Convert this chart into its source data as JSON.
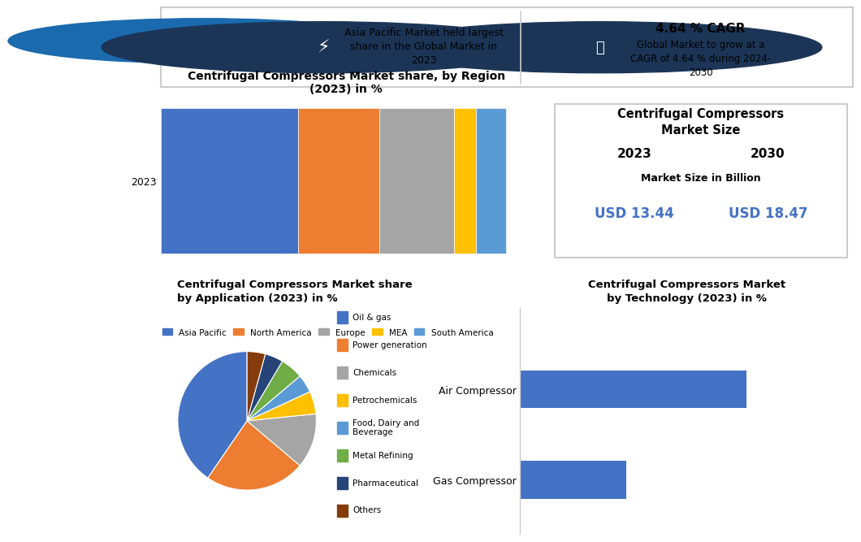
{
  "header_left_text": "Asia Pacific Market held largest\nshare in the Global Market in\n2023",
  "header_right_bold": "4.64 % CAGR",
  "header_right_text": "Global Market to grow at a\nCAGR of 4.64 % during 2024-\n2030",
  "bar_title": "Centrifugal Compressors Market share, by Region\n(2023) in %",
  "bar_label": "2023",
  "bar_regions": [
    "Asia Pacific",
    "North America",
    "Europe",
    "MEA",
    "South America"
  ],
  "bar_values": [
    37,
    22,
    20,
    6,
    8
  ],
  "bar_colors": [
    "#4472C4",
    "#ED7D31",
    "#A5A5A5",
    "#FFC000",
    "#5B9BD5"
  ],
  "market_size_title": "Centrifugal Compressors\nMarket Size",
  "market_size_year1": "2023",
  "market_size_year2": "2030",
  "market_size_label": "Market Size in Billion",
  "market_size_val1": "USD 13.44",
  "market_size_val2": "USD 18.47",
  "market_size_color": "#4472C4",
  "pie_title": "Centrifugal Compressors Market share\nby Application (2023) in %",
  "pie_labels": [
    "Oil & gas",
    "Power generation",
    "Chemicals",
    "Petrochemicals",
    "Food, Dairy and\nBeverage",
    "Metal Refining",
    "Pharmaceutical",
    "Others"
  ],
  "pie_values": [
    38,
    22,
    12,
    5,
    4,
    5,
    4,
    4
  ],
  "pie_colors": [
    "#4472C4",
    "#ED7D31",
    "#A5A5A5",
    "#FFC000",
    "#5B9BD5",
    "#70AD47",
    "#264478",
    "#843C0C"
  ],
  "tech_title": "Centrifugal Compressors Market\nby Technology (2023) in %",
  "tech_labels": [
    "Air Compressor",
    "Gas Compressor"
  ],
  "tech_values": [
    68,
    32
  ],
  "tech_color": "#4472C4",
  "bg_color": "#FFFFFF",
  "border_color": "#CCCCCC"
}
